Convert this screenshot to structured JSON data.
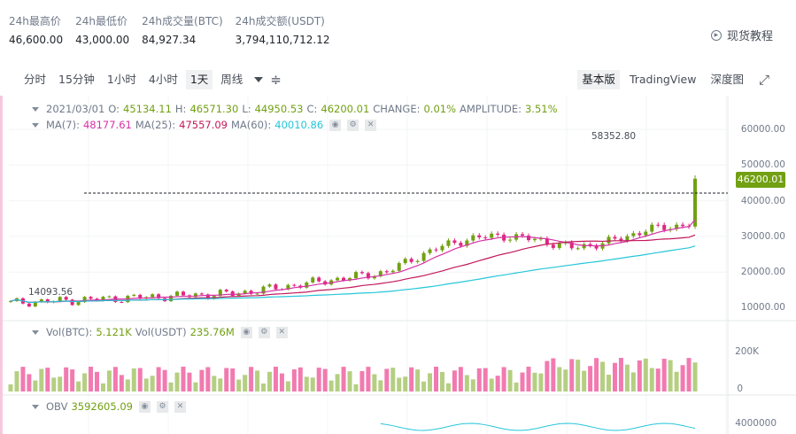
{
  "stats": [
    {
      "label": "24h最高价",
      "value": "46,600.00"
    },
    {
      "label": "24h最低价",
      "value": "43,000.00"
    },
    {
      "label": "24h成交量(BTC)",
      "value": "84,927.34"
    },
    {
      "label": "24h成交额(USDT)",
      "value": "3,794,110,712.12"
    }
  ],
  "tutorial_label": "现货教程",
  "intervals": [
    "分时",
    "15分钟",
    "1小时",
    "4小时",
    "1天",
    "周线"
  ],
  "active_interval": "1天",
  "views": [
    "基本版",
    "TradingView",
    "深度图"
  ],
  "active_view": "基本版",
  "icons": {
    "indicator": "indicator-icon",
    "fullscreen": "fullscreen-icon",
    "tutorial": "play-circle-icon"
  },
  "ohlc": {
    "date": "2021/03/01",
    "o_label": "O:",
    "o": "45134.11",
    "h_label": "H:",
    "h": "46571.30",
    "l_label": "L:",
    "l": "44950.53",
    "c_label": "C:",
    "c": "46200.01",
    "change_label": "CHANGE:",
    "change": "0.01%",
    "amplitude_label": "AMPLITUDE:",
    "amplitude": "3.51%"
  },
  "ma": {
    "ma7_label": "MA(7):",
    "ma7": "48177.61",
    "ma25_label": "MA(25):",
    "ma25": "47557.09",
    "ma60_label": "MA(60):",
    "ma60": "40010.86"
  },
  "vol": {
    "btc_label": "Vol(BTC):",
    "btc": "5.121K",
    "usdt_label": "Vol(USDT)",
    "usdt": "235.76M"
  },
  "obv": {
    "label": "OBV",
    "value": "3592605.09"
  },
  "price_axis": [
    "60000.00",
    "50000.00",
    "40000.00",
    "30000.00",
    "20000.00",
    "10000.00"
  ],
  "volume_axis": [
    "200K",
    "0"
  ],
  "obv_axis": [
    "4000000"
  ],
  "current_price": "46200.01",
  "high_marker": "58352.80",
  "low_marker": "14093.56",
  "colors": {
    "up": "#b5cf82",
    "down": "#f27ab0",
    "up_candle": "#72a012",
    "down_candle": "#e0277d",
    "ma7": "#d631a6",
    "ma25": "#c2185b",
    "ma60": "#26c6da",
    "badge": "#72a012"
  }
}
